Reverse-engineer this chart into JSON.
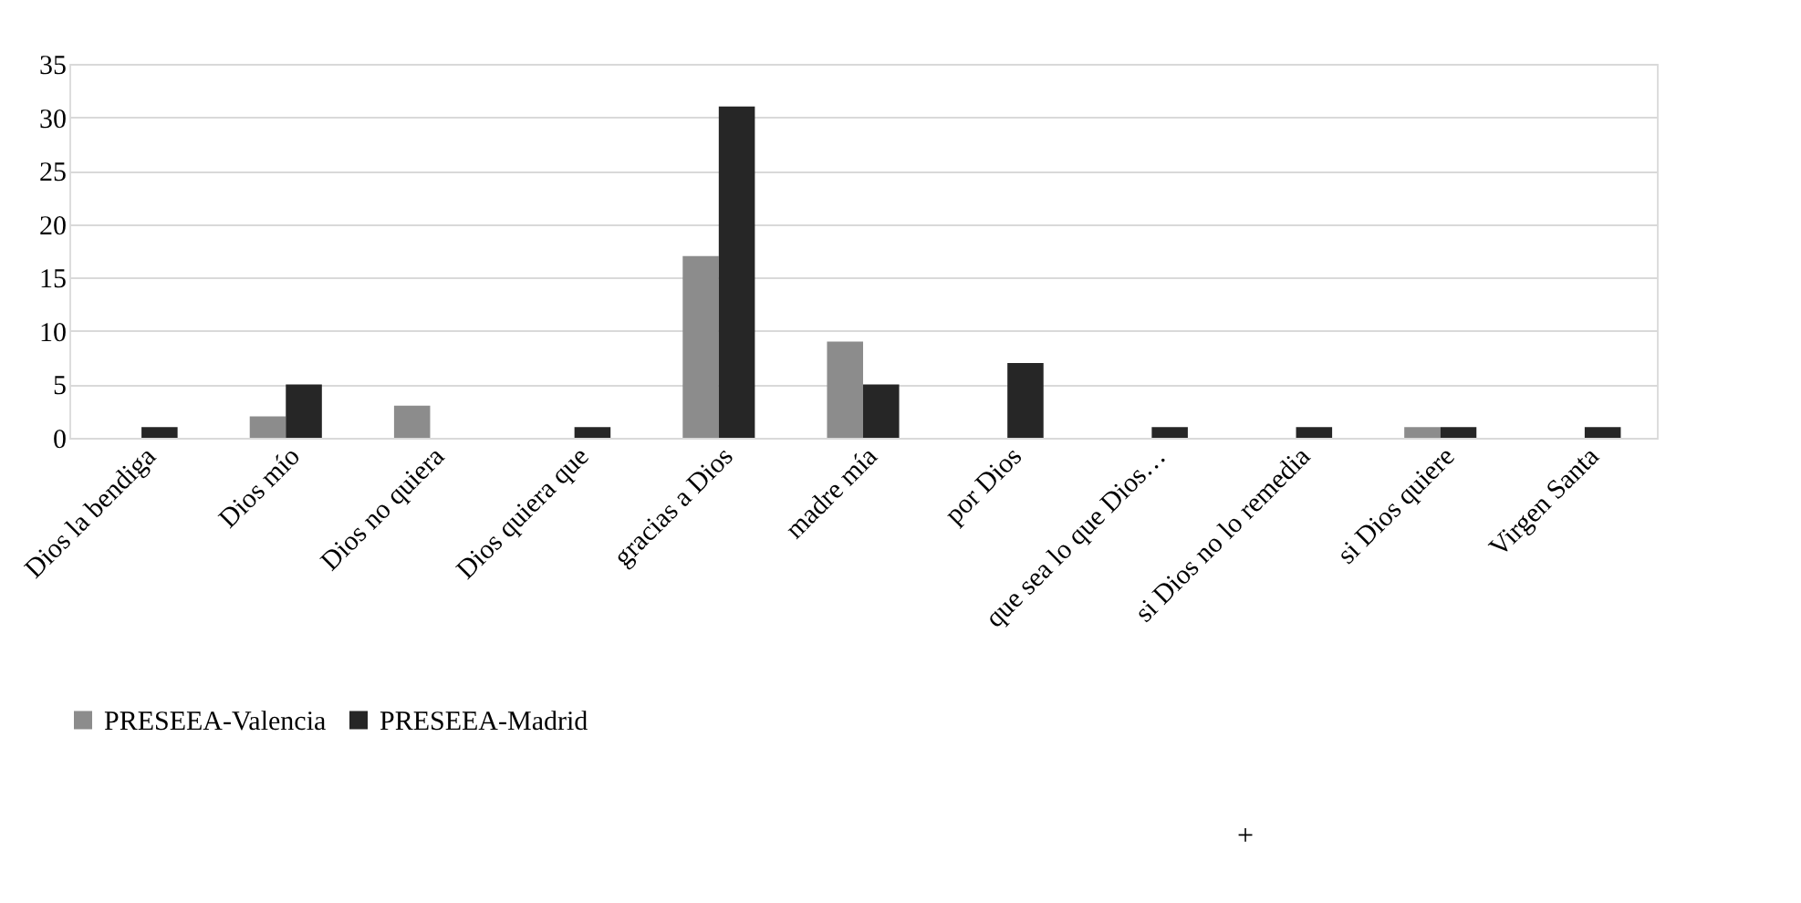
{
  "chart_data": {
    "type": "bar",
    "categories": [
      "Dios la bendiga",
      "Dios mío",
      "Dios no quiera",
      "Dios quiera que",
      "gracias a Dios",
      "madre mía",
      "por Dios",
      "que sea lo que Dios…",
      "si Dios no lo remedia",
      "si Dios quiere",
      "Virgen Santa"
    ],
    "series": [
      {
        "name": "PRESEEA-Valencia",
        "color": "#8c8c8c",
        "values": [
          null,
          2,
          3,
          null,
          17,
          9,
          null,
          null,
          null,
          1,
          null
        ]
      },
      {
        "name": "PRESEEA-Madrid",
        "color": "#262626",
        "values": [
          1,
          5,
          null,
          1,
          31,
          5,
          7,
          1,
          1,
          1,
          1
        ]
      }
    ],
    "ylim": [
      0,
      35
    ],
    "yticks": [
      0,
      5,
      10,
      15,
      20,
      25,
      30,
      35
    ],
    "grid": "y",
    "legend": "bottom",
    "annotations": [
      "+"
    ]
  }
}
